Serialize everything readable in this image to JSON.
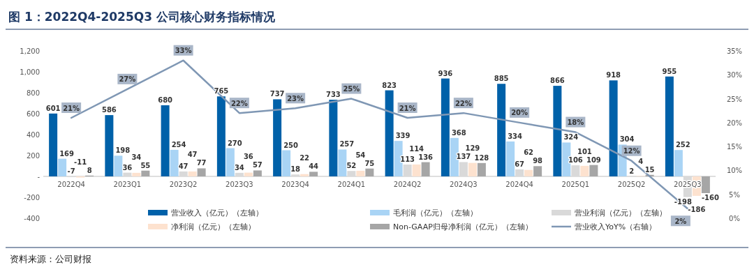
{
  "chart_data": {
    "type": "bar",
    "title": "图 1：2022Q4-2025Q3 公司核心财务指标情况",
    "categories": [
      "2022Q4",
      "2023Q1",
      "2023Q2",
      "2023Q3",
      "2023Q4",
      "2024Q1",
      "2024Q2",
      "2024Q3",
      "2024Q4",
      "2025Q1",
      "2025Q2",
      "2025Q3"
    ],
    "series": [
      {
        "name": "营业收入（亿元）（左轴）",
        "color": "#0061a9",
        "values": [
          601,
          586,
          680,
          765,
          737,
          733,
          823,
          936,
          885,
          866,
          918,
          955
        ]
      },
      {
        "name": "毛利润（亿元）（左轴）",
        "color": "#a9d4f5",
        "values": [
          169,
          198,
          254,
          270,
          250,
          257,
          339,
          368,
          334,
          324,
          304,
          252
        ]
      },
      {
        "name": "营业利润（亿元）（左轴）",
        "color": "#d9d9d9",
        "values": [
          -7,
          36,
          47,
          34,
          18,
          52,
          113,
          137,
          67,
          106,
          2,
          -198
        ]
      },
      {
        "name": "净利润（亿元）（左轴）",
        "color": "#fde2cf",
        "values": [
          -11,
          34,
          47,
          36,
          22,
          54,
          114,
          129,
          62,
          101,
          4,
          -186
        ]
      },
      {
        "name": "Non-GAAP归母净利润（亿元）（左轴）",
        "color": "#a6a6a6",
        "values": [
          8,
          55,
          77,
          57,
          44,
          75,
          136,
          128,
          98,
          109,
          15,
          -160
        ]
      },
      {
        "name": "营业收入YoY%（右轴）",
        "type": "line",
        "axis": "y2",
        "color": "#7f97b4",
        "values": [
          21,
          27,
          33,
          22,
          23,
          25,
          21,
          22,
          20,
          18,
          12,
          2
        ],
        "value_labels": [
          "21%",
          "27%",
          "33%",
          "22%",
          "23%",
          "25%",
          "21%",
          "22%",
          "20%",
          "18%",
          "12%",
          "2%"
        ]
      }
    ],
    "ylim": [
      -400,
      1200
    ],
    "yticks": [
      -400,
      -200,
      {
        "value": 0,
        "label": "-"
      },
      200,
      400,
      600,
      800,
      {
        "value": 1000,
        "label": "1,000"
      },
      {
        "value": 1200,
        "label": "1,200"
      }
    ],
    "y2lim": [
      0,
      35
    ],
    "y2ticks": [
      {
        "value": 0,
        "label": "0%"
      },
      {
        "value": 5,
        "label": "5%"
      },
      {
        "value": 10,
        "label": "10%"
      },
      {
        "value": 15,
        "label": "15%"
      },
      {
        "value": 20,
        "label": "20%"
      },
      {
        "value": 25,
        "label": "25%"
      },
      {
        "value": 30,
        "label": "30%"
      },
      {
        "value": 35,
        "label": "35%"
      }
    ],
    "data_labels": true,
    "legend": "bottom",
    "annotations": [
      "资料来源：公司财报"
    ]
  }
}
